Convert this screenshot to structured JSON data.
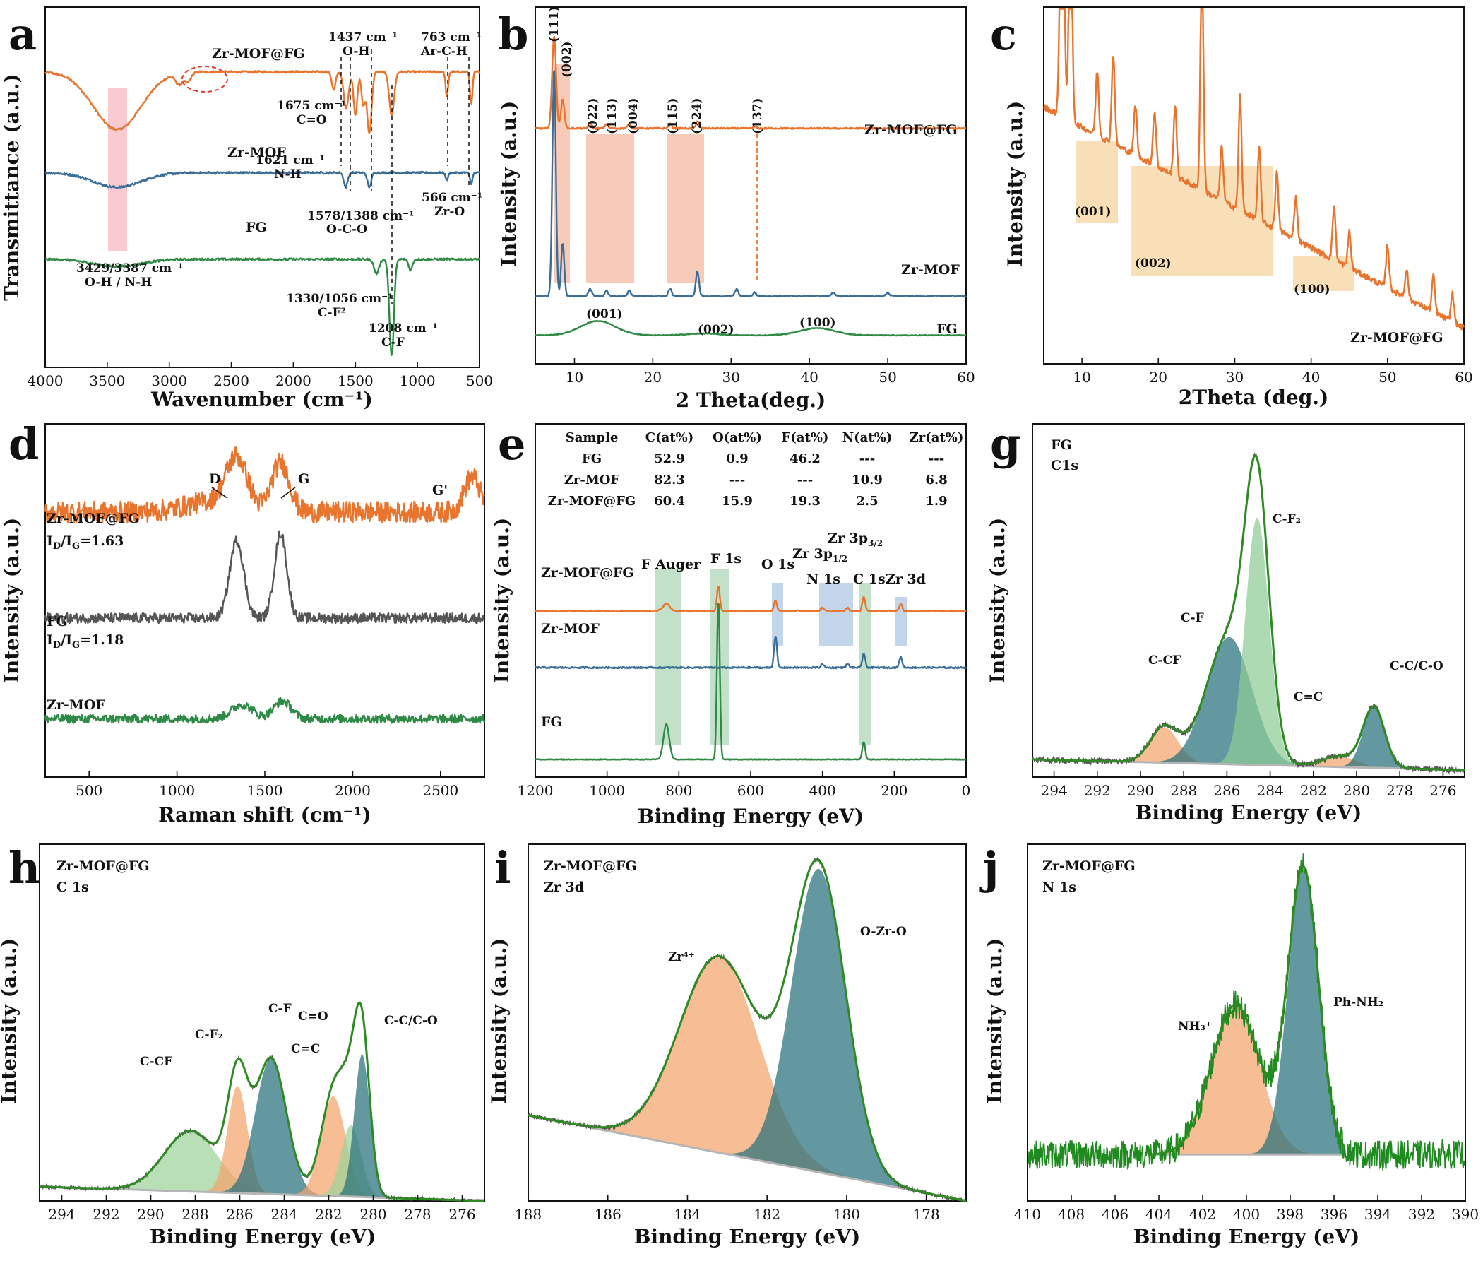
{
  "colors": {
    "orange": "#e8742d",
    "blue": "#3a6e99",
    "green": "#2f8a45",
    "gray": "#555555",
    "darkgreen": "#1f8a1f",
    "fitgreen": "#2e8b22"
  },
  "chart_data": [
    {
      "id": "a",
      "letter": "a",
      "type": "line",
      "xlabel": "Wavenumber (cm⁻¹)",
      "ylabel": "Transmittance (a.u.)",
      "xlim": [
        4000,
        500
      ],
      "reverse_x": true,
      "xticks": [
        4000,
        3500,
        3000,
        2500,
        2000,
        1500,
        1000,
        500
      ],
      "series": [
        {
          "name": "Zr-MOF@FG",
          "color": "orange",
          "offset": 0.82,
          "noise": 0.003,
          "features": [
            [
              3420,
              0.16,
              190
            ],
            [
              2920,
              0.03,
              30
            ],
            [
              2850,
              0.025,
              25
            ],
            [
              1675,
              0.05,
              15
            ],
            [
              1575,
              0.1,
              20
            ],
            [
              1500,
              0.12,
              15
            ],
            [
              1437,
              0.09,
              15
            ],
            [
              1388,
              0.17,
              18
            ],
            [
              1208,
              0.12,
              20
            ],
            [
              763,
              0.07,
              10
            ],
            [
              566,
              0.09,
              10
            ]
          ]
        },
        {
          "name": "Zr-MOF",
          "color": "blue",
          "offset": 0.54,
          "noise": 0.003,
          "features": [
            [
              3420,
              0.04,
              190
            ],
            [
              1578,
              0.04,
              15
            ],
            [
              1388,
              0.04,
              15
            ],
            [
              763,
              0.02,
              10
            ],
            [
              566,
              0.03,
              10
            ]
          ]
        },
        {
          "name": "FG",
          "color": "green",
          "offset": 0.3,
          "noise": 0.003,
          "features": [
            [
              3420,
              0.02,
              190
            ],
            [
              1330,
              0.04,
              20
            ],
            [
              1208,
              0.27,
              18
            ],
            [
              1056,
              0.03,
              15
            ]
          ]
        }
      ],
      "annotations": [
        "1437 cm⁻¹",
        "O-H",
        "763 cm⁻¹",
        "Ar-C-H",
        "1675 cm⁻¹",
        "C=O",
        "1621 cm⁻¹",
        "N-H",
        "1578/1388 cm⁻¹",
        "O-C-O",
        "566 cm⁻¹",
        "Zr-O",
        "3429/3387 cm⁻¹",
        "O-H / N-H",
        "1330/1056 cm⁻¹",
        "C-F²",
        "1208 cm⁻¹",
        "C-F"
      ]
    },
    {
      "id": "b",
      "letter": "b",
      "type": "line",
      "xlabel": "2 Theta(deg.)",
      "ylabel": "Intensity (a.u.)",
      "xlim": [
        5,
        60
      ],
      "reverse_x": false,
      "xticks": [
        10,
        20,
        30,
        40,
        50,
        60
      ],
      "series": [
        {
          "name": "Zr-MOF@FG",
          "color": "orange",
          "offset": 0.66,
          "noise": 0.002,
          "features": [
            [
              7.4,
              -0.26,
              0.25
            ],
            [
              8.5,
              -0.08,
              0.22
            ],
            [
              12.0,
              -0.015,
              0.2
            ],
            [
              14.1,
              -0.012,
              0.2
            ],
            [
              17.0,
              -0.012,
              0.2
            ],
            [
              22.2,
              -0.012,
              0.2
            ],
            [
              25.7,
              -0.02,
              0.2
            ],
            [
              33.0,
              -0.005,
              0.2
            ]
          ]
        },
        {
          "name": "Zr-MOF",
          "color": "blue",
          "offset": 0.19,
          "noise": 0.002,
          "features": [
            [
              7.4,
              -0.64,
              0.22
            ],
            [
              8.5,
              -0.15,
              0.2
            ],
            [
              12.0,
              -0.02,
              0.2
            ],
            [
              14.1,
              -0.015,
              0.2
            ],
            [
              17.0,
              -0.015,
              0.2
            ],
            [
              22.2,
              -0.02,
              0.2
            ],
            [
              25.7,
              -0.07,
              0.2
            ],
            [
              30.7,
              -0.02,
              0.2
            ],
            [
              33.0,
              -0.01,
              0.2
            ],
            [
              43.0,
              -0.01,
              0.2
            ],
            [
              50.0,
              -0.01,
              0.2
            ]
          ]
        },
        {
          "name": "FG",
          "color": "green",
          "offset": 0.08,
          "noise": 0.001,
          "features": [
            [
              13.0,
              -0.04,
              2.2
            ],
            [
              26.5,
              -0.005,
              2.0
            ],
            [
              41.0,
              -0.02,
              2.2
            ]
          ]
        }
      ],
      "peak_labels": [
        "(111)",
        "(002)",
        "(022)",
        "(113)",
        "(004)",
        "(115)",
        "(224)",
        "(137)"
      ],
      "phase_labels": [
        "(001)",
        "(002)",
        "(100)"
      ]
    },
    {
      "id": "c",
      "letter": "c",
      "type": "line",
      "xlabel": "2Theta (deg.)",
      "ylabel": "Intensity (a.u.)",
      "xlim": [
        5,
        60
      ],
      "reverse_x": false,
      "xticks": [
        10,
        20,
        30,
        40,
        50,
        60
      ],
      "series": [
        {
          "name": "Zr-MOF@FG",
          "color": "orange",
          "offset": 0.1,
          "noise": 0.008,
          "decay": 0.78,
          "features": [
            [
              7.4,
              -0.9,
              0.25
            ],
            [
              8.5,
              -0.6,
              0.22
            ],
            [
              12.0,
              -0.18,
              0.2
            ],
            [
              14.1,
              -0.25,
              0.2
            ],
            [
              17.0,
              -0.14,
              0.2
            ],
            [
              19.5,
              -0.15,
              0.2
            ],
            [
              22.2,
              -0.2,
              0.2
            ],
            [
              25.7,
              -0.65,
              0.2
            ],
            [
              28.3,
              -0.15,
              0.2
            ],
            [
              30.7,
              -0.32,
              0.2
            ],
            [
              33.2,
              -0.2,
              0.2
            ],
            [
              35.5,
              -0.16,
              0.2
            ],
            [
              38.0,
              -0.12,
              0.2
            ],
            [
              43.0,
              -0.15,
              0.2
            ],
            [
              45.0,
              -0.1,
              0.2
            ],
            [
              50.0,
              -0.12,
              0.2
            ],
            [
              52.5,
              -0.08,
              0.2
            ],
            [
              56.0,
              -0.1,
              0.2
            ],
            [
              58.5,
              -0.08,
              0.2
            ]
          ]
        }
      ],
      "phase_labels": [
        "(001)",
        "(002)",
        "(100)"
      ]
    },
    {
      "id": "d",
      "letter": "d",
      "type": "line",
      "xlabel": "Raman shift (cm⁻¹)",
      "ylabel": "Intensity (a.u.)",
      "xlim": [
        250,
        2750
      ],
      "reverse_x": false,
      "xticks": [
        500,
        1000,
        1500,
        2000,
        2500
      ],
      "series": [
        {
          "name": "Zr-MOF@FG",
          "color": "orange",
          "offset": 0.75,
          "noise": 0.03,
          "features": [
            [
              1340,
              -0.14,
              60
            ],
            [
              1590,
              -0.14,
              50
            ],
            [
              2680,
              -0.1,
              45
            ],
            [
              1200,
              -0.03,
              150
            ]
          ]
        },
        {
          "name": "FG",
          "color": "gray",
          "offset": 0.45,
          "noise": 0.014,
          "features": [
            [
              1340,
              -0.22,
              40
            ],
            [
              1590,
              -0.24,
              35
            ]
          ]
        },
        {
          "name": "Zr-MOF",
          "color": "green",
          "offset": 0.165,
          "noise": 0.012,
          "features": [
            [
              1370,
              -0.04,
              60
            ],
            [
              1600,
              -0.05,
              50
            ]
          ]
        }
      ],
      "labels": [
        "Zr-MOF@FG",
        "I",
        "D",
        "/I",
        "G",
        "=1.63",
        "FG",
        "I",
        "D",
        "/I",
        "G",
        "=1.18",
        "Zr-MOF",
        "D",
        "G",
        "G'"
      ]
    },
    {
      "id": "e",
      "letter": "e",
      "type": "line",
      "xlabel": "Binding Energy (eV)",
      "ylabel": "Intensity (a.u.)",
      "xlim": [
        1200,
        0
      ],
      "reverse_x": true,
      "xticks": [
        1200,
        1000,
        800,
        600,
        400,
        200,
        0
      ],
      "series": [
        {
          "name": "Zr-MOF@FG",
          "color": "orange",
          "offset": 0.47,
          "noise": 0.002,
          "features": [
            [
              690,
              -0.07,
              4
            ],
            [
              835,
              -0.02,
              10
            ],
            [
              531,
              -0.03,
              4
            ],
            [
              400,
              -0.01,
              4
            ],
            [
              285,
              -0.04,
              4
            ],
            [
              182,
              -0.02,
              4
            ],
            [
              330,
              -0.01,
              4
            ]
          ]
        },
        {
          "name": "Zr-MOF",
          "color": "blue",
          "offset": 0.31,
          "noise": 0.002,
          "features": [
            [
              531,
              -0.09,
              4
            ],
            [
              285,
              -0.04,
              4
            ],
            [
              182,
              -0.03,
              4
            ],
            [
              400,
              -0.01,
              4
            ],
            [
              330,
              -0.01,
              4
            ]
          ]
        },
        {
          "name": "FG",
          "color": "green",
          "offset": 0.05,
          "noise": 0.001,
          "features": [
            [
              690,
              -0.45,
              4
            ],
            [
              835,
              -0.1,
              8
            ],
            [
              285,
              -0.05,
              4
            ]
          ]
        }
      ],
      "peak_labels": [
        "F Auger",
        "F 1s",
        "O 1s",
        "N 1s",
        "Zr 3p",
        "1/2",
        "Zr 3p",
        "3/2",
        "C 1s",
        "Zr 3d"
      ],
      "table": {
        "header": [
          "Sample",
          "C(at%)",
          "O(at%)",
          "F(at%)",
          "N(at%)",
          "Zr(at%)"
        ],
        "rows": [
          [
            "FG",
            "52.9",
            "0.9",
            "46.2",
            "---",
            "---"
          ],
          [
            "Zr-MOF",
            "82.3",
            "---",
            "---",
            "10.9",
            "6.8"
          ],
          [
            "Zr-MOF@FG",
            "60.4",
            "15.9",
            "19.3",
            "2.5",
            "1.9"
          ]
        ]
      }
    },
    {
      "id": "g",
      "letter": "g",
      "type": "line",
      "xlabel": "Binding Energy (eV)",
      "ylabel": "Intensity (a.u.)",
      "xlim": [
        295,
        275
      ],
      "reverse_x": true,
      "xticks": [
        294,
        292,
        290,
        288,
        286,
        284,
        282,
        280,
        278,
        276
      ],
      "title_lines": [
        "FG",
        "C1s"
      ],
      "baseline": {
        "left": 0.05,
        "right": 0.02
      },
      "components": [
        {
          "label": "C-CF",
          "center": 288.9,
          "height": 0.1,
          "width": 0.65,
          "color": "#f4a46b"
        },
        {
          "label": "C-F",
          "center": 285.9,
          "height": 0.36,
          "width": 1.05,
          "color": "#27707c"
        },
        {
          "label": "C-F₂",
          "center": 284.6,
          "height": 0.7,
          "width": 0.55,
          "color": "#8fcc96"
        },
        {
          "label": "C=C",
          "center": 280.8,
          "height": 0.03,
          "width": 0.8,
          "color": "#f4a46b"
        },
        {
          "label": "C-C/C-O",
          "center": 279.2,
          "height": 0.17,
          "width": 0.5,
          "color": "#27707c"
        }
      ],
      "noise": 0.008
    },
    {
      "id": "h",
      "letter": "h",
      "type": "line",
      "xlabel": "Binding Energy (eV)",
      "ylabel": "Intensity (a.u.)",
      "xlim": [
        295,
        275
      ],
      "reverse_x": true,
      "xticks": [
        294,
        292,
        290,
        288,
        286,
        284,
        282,
        280,
        278,
        276
      ],
      "title_lines": [
        "Zr-MOF@FG",
        "C 1s"
      ],
      "baseline": {
        "left": 0.04,
        "right": 0.0
      },
      "components": [
        {
          "label": "C-CF",
          "center": 288.2,
          "height": 0.17,
          "width": 1.2,
          "color": "#9ed29a"
        },
        {
          "label": "C-F₂",
          "center": 286.1,
          "height": 0.3,
          "width": 0.45,
          "color": "#f4a46b"
        },
        {
          "label": "C-F",
          "center": 284.6,
          "height": 0.38,
          "width": 0.7,
          "color": "#27707c"
        },
        {
          "label": "C=O",
          "center": 281.8,
          "height": 0.28,
          "width": 0.55,
          "color": "#f4a46b"
        },
        {
          "label": "C=C",
          "center": 281.0,
          "height": 0.2,
          "width": 0.45,
          "color": "#9ed29a"
        },
        {
          "label": "C-C/C-O",
          "center": 280.5,
          "height": 0.4,
          "width": 0.35,
          "color": "#27707c"
        }
      ],
      "noise": 0.004
    },
    {
      "id": "i",
      "letter": "i",
      "type": "line",
      "xlabel": "Binding Energy (eV)",
      "ylabel": "Intensity (a.u.)",
      "xlim": [
        188,
        177
      ],
      "reverse_x": true,
      "xticks": [
        188,
        186,
        184,
        182,
        180,
        178
      ],
      "title_lines": [
        "Zr-MOF@FG",
        "Zr 3d"
      ],
      "baseline": {
        "left": 0.24,
        "right": 0.0
      },
      "components": [
        {
          "label": "Zr⁴⁺",
          "center": 183.2,
          "height": 0.55,
          "width": 1.0,
          "color": "#f4a46b"
        },
        {
          "label": "O-Zr-O",
          "center": 180.7,
          "height": 0.85,
          "width": 0.68,
          "color": "#27707c"
        }
      ],
      "noise": 0.005
    },
    {
      "id": "j",
      "letter": "j",
      "type": "line",
      "xlabel": "Binding Energy (eV)",
      "ylabel": "Intensity (a.u.)",
      "xlim": [
        410,
        390
      ],
      "reverse_x": true,
      "xticks": [
        410,
        408,
        406,
        404,
        402,
        400,
        398,
        396,
        394,
        392,
        390
      ],
      "title_lines": [
        "Zr-MOF@FG",
        "N 1s"
      ],
      "baseline": {
        "left": 0.13,
        "right": 0.13
      },
      "components": [
        {
          "label": "NH₃⁺",
          "center": 400.5,
          "height": 0.42,
          "width": 1.1,
          "color": "#f4a46b"
        },
        {
          "label": "Ph-NH₂",
          "center": 397.4,
          "height": 0.8,
          "width": 0.7,
          "color": "#27707c"
        }
      ],
      "noise": 0.04,
      "fit_range": [
        404.5,
        395.5
      ]
    }
  ]
}
